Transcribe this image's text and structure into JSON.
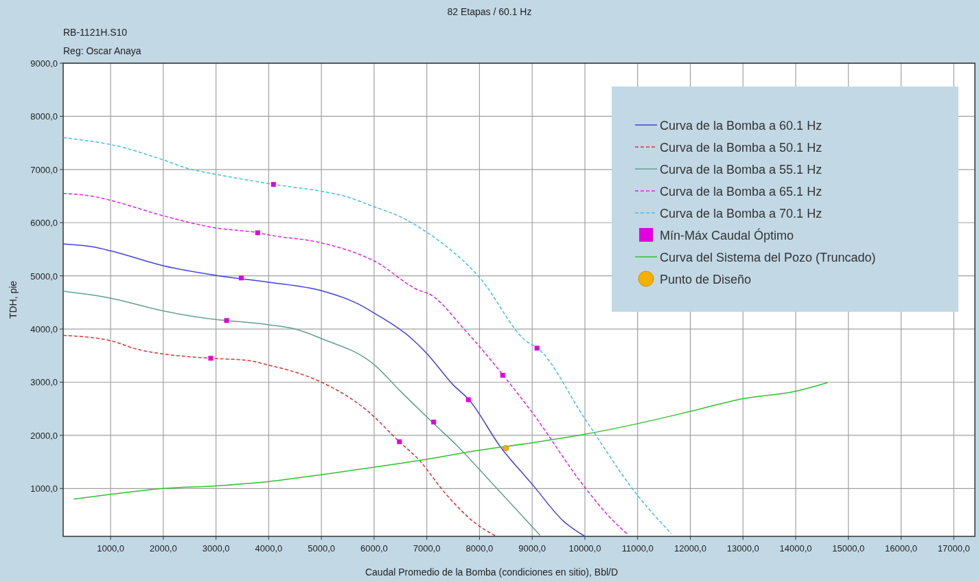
{
  "chart_data": {
    "type": "line",
    "title": "82 Etapas / 60.1 Hz",
    "subtitle": "RB-1121H.S10",
    "annotations": [
      "Reg: Oscar Anaya"
    ],
    "xlabel": "Caudal Promedio de la Bomba (condiciones en sitio), Bbl/D",
    "ylabel": "TDH, pie",
    "xlim": [
      100,
      17400
    ],
    "ylim": [
      100,
      9000
    ],
    "xticks": [
      {
        "value": 1000,
        "label": "1000,0"
      },
      {
        "value": 2000,
        "label": "2000,0"
      },
      {
        "value": 3000,
        "label": "3000,0"
      },
      {
        "value": 4000,
        "label": "4000,0"
      },
      {
        "value": 5000,
        "label": "5000,0"
      },
      {
        "value": 6000,
        "label": "6000,0"
      },
      {
        "value": 7000,
        "label": "7000,0"
      },
      {
        "value": 8000,
        "label": "8000,0"
      },
      {
        "value": 9000,
        "label": "9000,0"
      },
      {
        "value": 10000,
        "label": "10000,0"
      },
      {
        "value": 11000,
        "label": "11000,0"
      },
      {
        "value": 12000,
        "label": "12000,0"
      },
      {
        "value": 13000,
        "label": "13000,0"
      },
      {
        "value": 14000,
        "label": "14000,0"
      },
      {
        "value": 15000,
        "label": "15000,0"
      },
      {
        "value": 16000,
        "label": "16000,0"
      },
      {
        "value": 17000,
        "label": "17000,0"
      }
    ],
    "yticks": [
      {
        "value": 1000,
        "label": "1000,0"
      },
      {
        "value": 2000,
        "label": "2000,0"
      },
      {
        "value": 3000,
        "label": "3000,0"
      },
      {
        "value": 4000,
        "label": "4000,0"
      },
      {
        "value": 5000,
        "label": "5000,0"
      },
      {
        "value": 6000,
        "label": "6000,0"
      },
      {
        "value": 7000,
        "label": "7000,0"
      },
      {
        "value": 8000,
        "label": "8000,0"
      },
      {
        "value": 9000,
        "label": "9000,0"
      }
    ],
    "grid": true,
    "legend": "top right",
    "marker": "none",
    "series": [
      {
        "name": "Curva de la Bomba a 60.1 Hz",
        "color": "#4040e0",
        "line_style": "solid",
        "x": [
          100,
          690,
          1000,
          2000,
          3000,
          4000,
          5000,
          5700,
          6000,
          6700,
          7000,
          7500,
          7800,
          8400,
          9000,
          9600,
          10000
        ],
        "values": [
          5600,
          5540,
          5470,
          5190,
          5010,
          4880,
          4720,
          4470,
          4300,
          3830,
          3540,
          2950,
          2670,
          1780,
          1080,
          380,
          100
        ]
      },
      {
        "name": "Curva de la Bomba a 50.1 Hz",
        "color": "#e03030",
        "line_style": "dashed",
        "x": [
          100,
          1000,
          1500,
          2000,
          2900,
          3600,
          4000,
          4500,
          5000,
          5850,
          6480,
          6840,
          7360,
          7880,
          8320
        ],
        "values": [
          3880,
          3780,
          3620,
          3530,
          3450,
          3410,
          3320,
          3190,
          3000,
          2480,
          1880,
          1550,
          900,
          380,
          100
        ]
      },
      {
        "name": "Curva de la Bomba a 55.1 Hz",
        "color": "#60a090",
        "line_style": "solid",
        "x": [
          100,
          1000,
          2000,
          3000,
          3200,
          4000,
          4500,
          5000,
          6000,
          6500,
          7100,
          7600,
          8200,
          8750,
          9150
        ],
        "values": [
          4710,
          4580,
          4340,
          4180,
          4160,
          4080,
          4000,
          3820,
          3330,
          2830,
          2250,
          1780,
          1140,
          550,
          120
        ]
      },
      {
        "name": "Curva de la Bomba a 65.1 Hz",
        "color": "#e020e0",
        "line_style": "dashed",
        "x": [
          100,
          700,
          1000,
          2000,
          3000,
          3800,
          4000,
          5000,
          5850,
          6000,
          6900,
          7000,
          7750,
          8450,
          9000,
          10000,
          10500,
          10820
        ],
        "values": [
          6550,
          6490,
          6420,
          6130,
          5900,
          5810,
          5770,
          5620,
          5350,
          5280,
          4710,
          4680,
          3950,
          3130,
          2430,
          1020,
          430,
          130
        ]
      },
      {
        "name": "Curva de la Bomba a 70.1 Hz",
        "color": "#40c0e0",
        "line_style": "dashed",
        "x": [
          100,
          700,
          1000,
          2000,
          2500,
          3000,
          4100,
          5000,
          5400,
          6000,
          6500,
          7000,
          8000,
          8900,
          9100,
          10000,
          11000,
          11640
        ],
        "values": [
          7600,
          7520,
          7470,
          7180,
          7010,
          6910,
          6720,
          6590,
          6510,
          6300,
          6110,
          5820,
          4970,
          3760,
          3640,
          2310,
          870,
          150
        ]
      },
      {
        "name": "Mín-Máx Caudal Óptimo",
        "type": "scatter",
        "marker": "square",
        "color": "#e000e0",
        "x": [
          2900,
          6480,
          3200,
          7130,
          3480,
          7790,
          3790,
          8440,
          4090,
          9090
        ],
        "values": [
          3450,
          1880,
          4160,
          2250,
          4960,
          2670,
          5810,
          3130,
          6720,
          3640
        ]
      },
      {
        "name": "Curva del Sistema del Pozo (Truncado)",
        "color": "#30c030",
        "line_style": "solid",
        "x": [
          300,
          1000,
          2000,
          3000,
          4000,
          5000,
          6000,
          7000,
          8000,
          9000,
          10000,
          11000,
          12000,
          13000,
          14000,
          14600
        ],
        "values": [
          800,
          890,
          1000,
          1050,
          1130,
          1260,
          1400,
          1550,
          1720,
          1860,
          2020,
          2220,
          2450,
          2690,
          2830,
          2990
        ]
      },
      {
        "name": "Punto de Diseño",
        "type": "scatter",
        "marker": "circle",
        "color": "#f5b000",
        "x": [
          8500
        ],
        "values": [
          1760
        ]
      }
    ]
  }
}
